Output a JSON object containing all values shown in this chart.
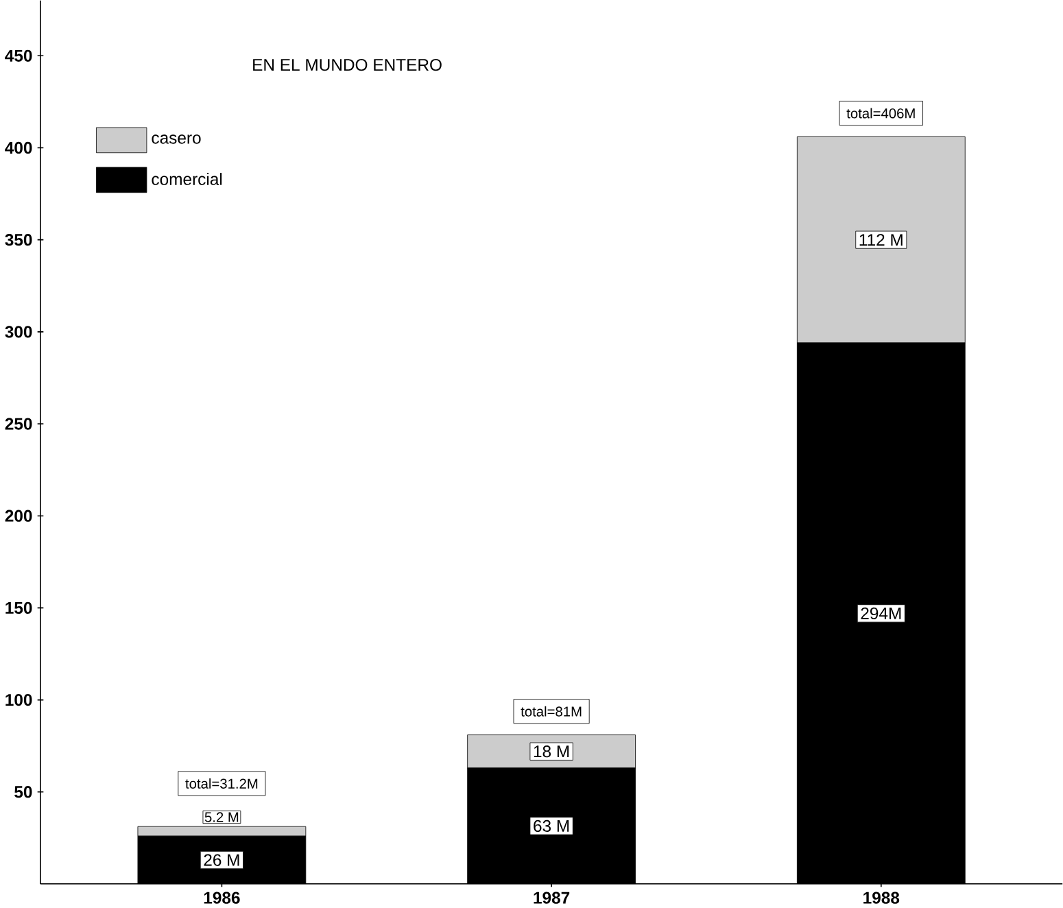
{
  "chart_data": {
    "type": "bar",
    "title": "EN EL MUNDO ENTERO",
    "categories": [
      "1986",
      "1987",
      "1988"
    ],
    "stacked": true,
    "series": [
      {
        "name": "comercial",
        "color": "#000000",
        "values": [
          26,
          63,
          294
        ],
        "value_labels": [
          "26 M",
          "63 M",
          "294M"
        ]
      },
      {
        "name": "casero",
        "color": "#cccccc",
        "values": [
          5.2,
          18,
          112
        ],
        "value_labels": [
          "5.2 M",
          "18 M",
          "112 M"
        ]
      }
    ],
    "totals": [
      "total=31.2M",
      "total=81M",
      "total=406M"
    ],
    "ylim": [
      0,
      480
    ],
    "yticks": [
      50,
      100,
      150,
      200,
      250,
      300,
      350,
      400,
      450
    ],
    "grid": false,
    "legend": "top left"
  }
}
